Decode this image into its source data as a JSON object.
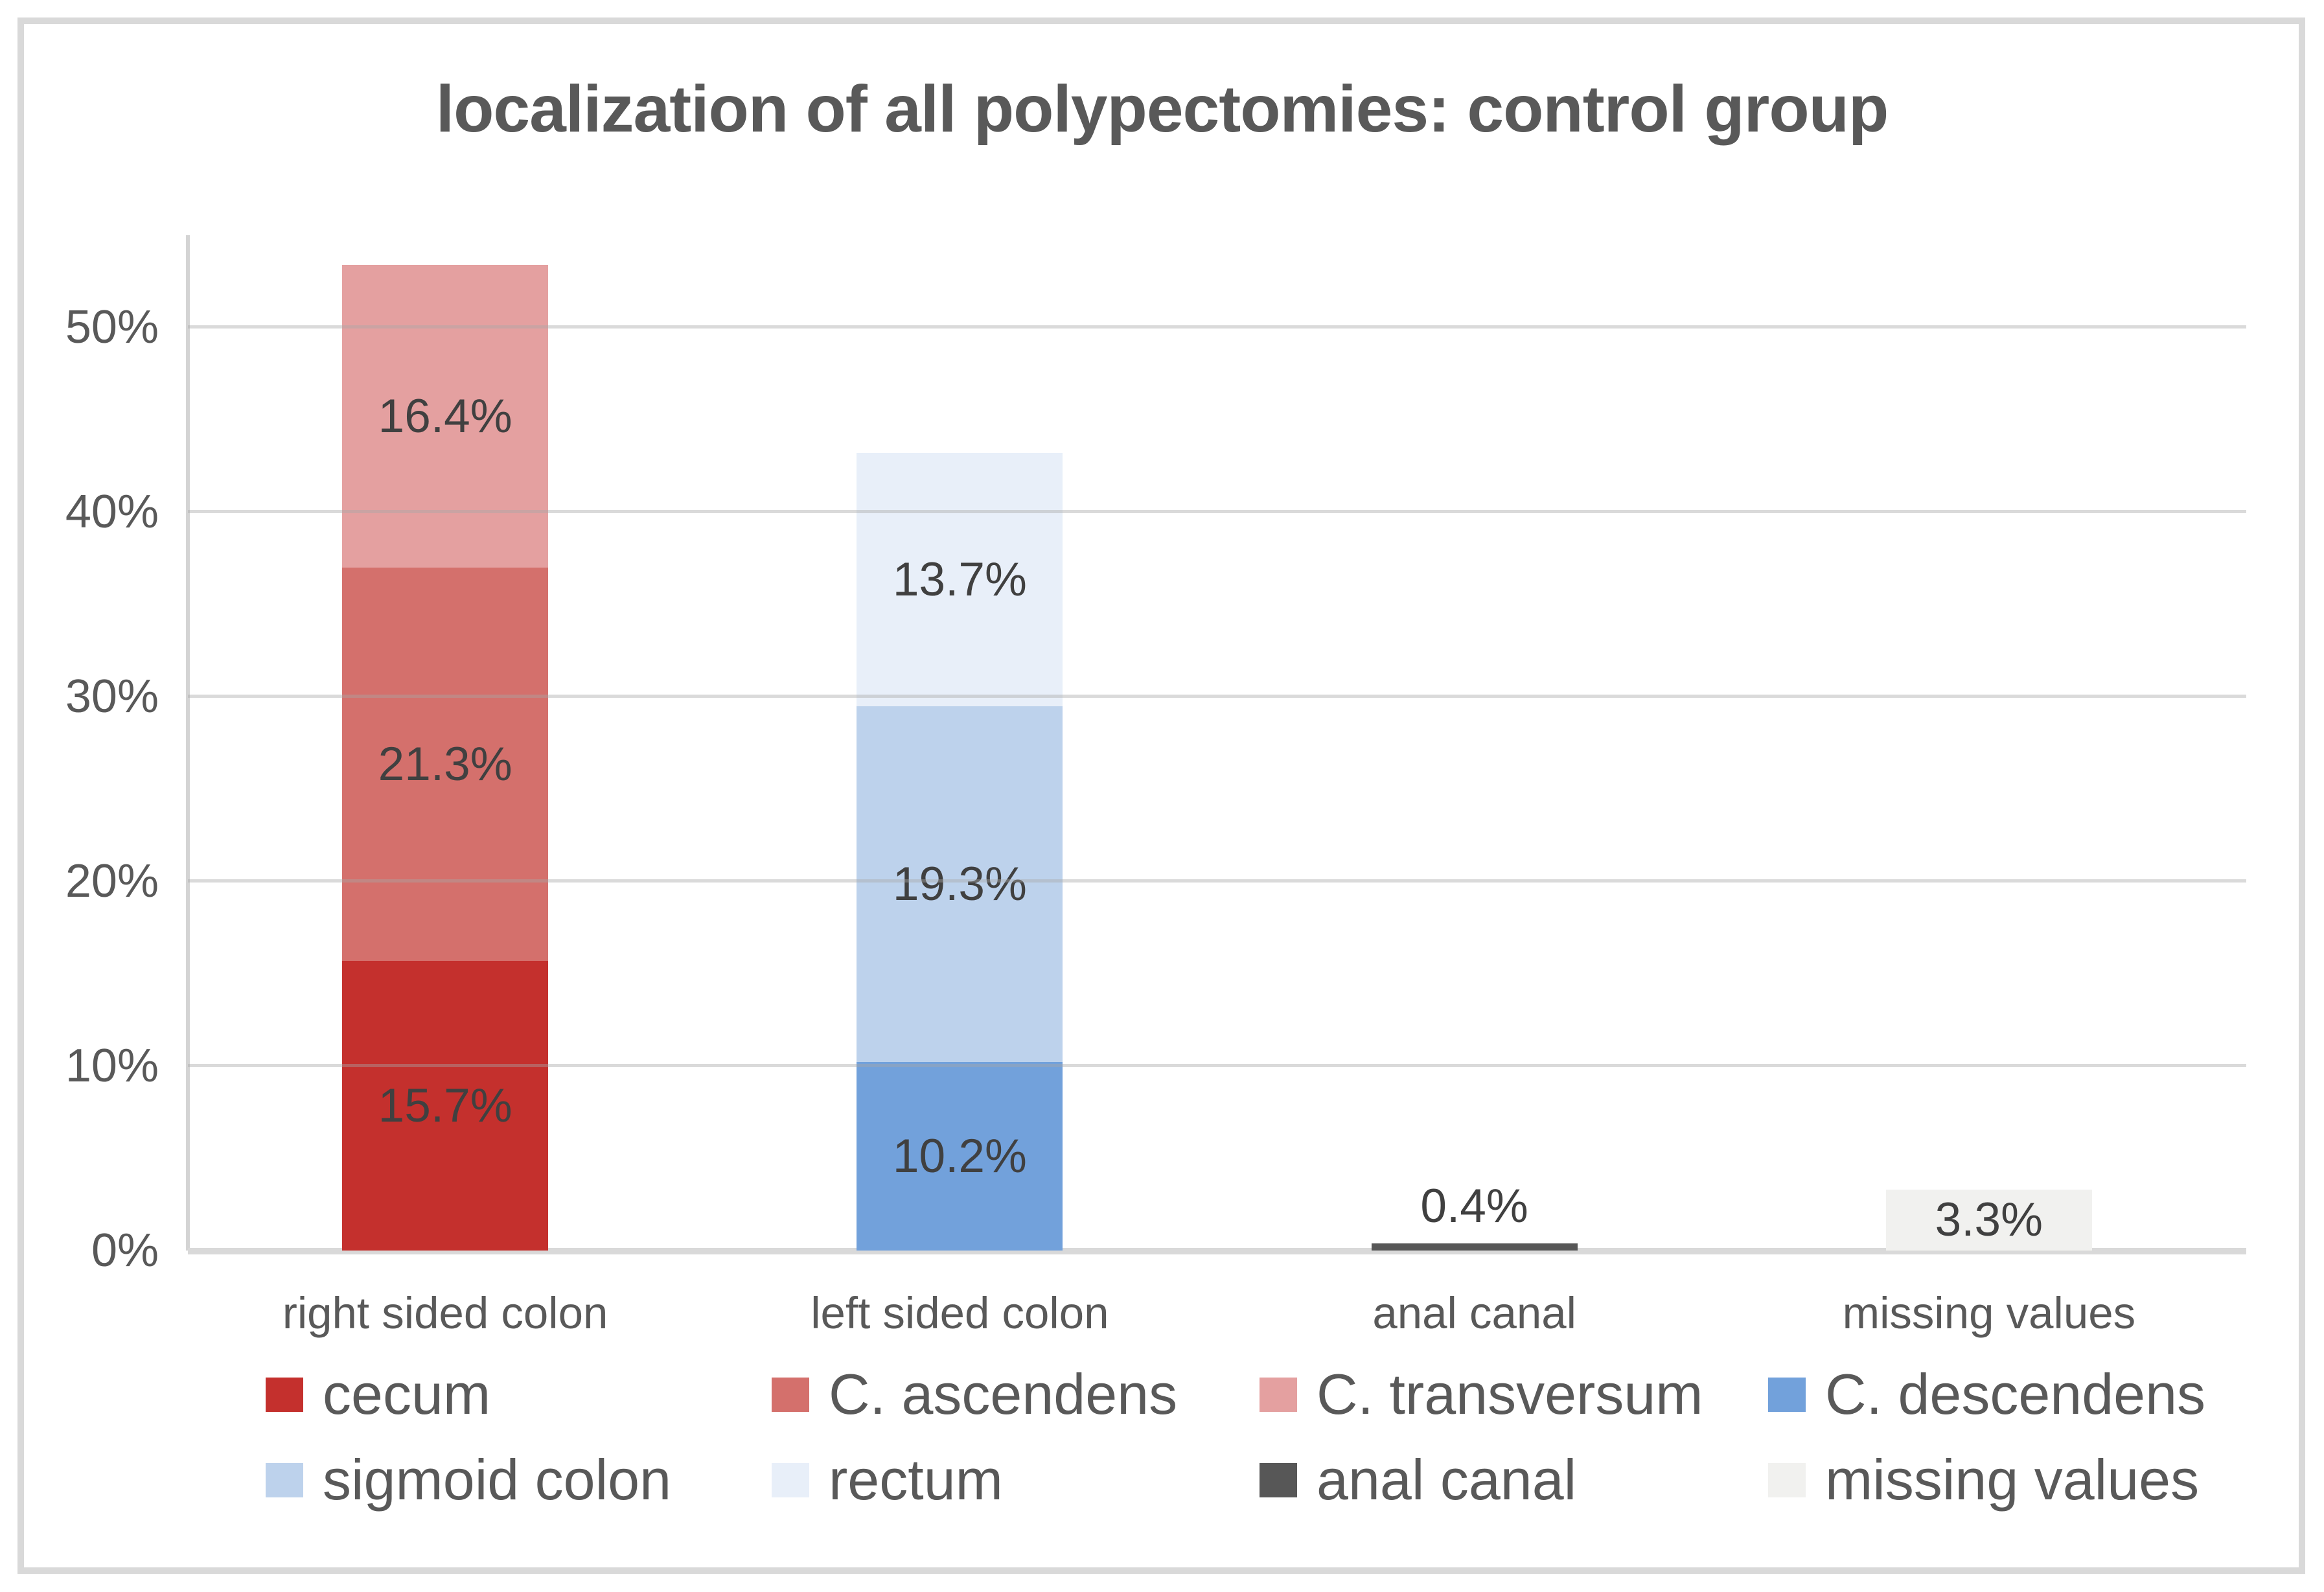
{
  "chart_data": {
    "type": "bar",
    "stacked": true,
    "title": "localization of all polypectomies: control group",
    "categories": [
      "right sided colon",
      "left sided colon",
      "anal canal",
      "missing values"
    ],
    "series": [
      {
        "name": "cecum",
        "color": "#C4302D",
        "values": [
          15.7,
          0,
          0,
          0
        ],
        "labels": [
          "15.7%",
          "",
          "",
          ""
        ]
      },
      {
        "name": "C. ascendens",
        "color": "#D4706C",
        "values": [
          21.3,
          0,
          0,
          0
        ],
        "labels": [
          "21.3%",
          "",
          "",
          ""
        ]
      },
      {
        "name": "C. transversum",
        "color": "#E4A0A0",
        "values": [
          16.4,
          0,
          0,
          0
        ],
        "labels": [
          "16.4%",
          "",
          "",
          ""
        ]
      },
      {
        "name": "C. descendens",
        "color": "#72A1DB",
        "values": [
          0,
          10.2,
          0,
          0
        ],
        "labels": [
          "",
          "10.2%",
          "",
          ""
        ]
      },
      {
        "name": "sigmoid colon",
        "color": "#BDD2EC",
        "values": [
          0,
          19.3,
          0,
          0
        ],
        "labels": [
          "",
          "19.3%",
          "",
          ""
        ]
      },
      {
        "name": "rectum",
        "color": "#E8EFF9",
        "values": [
          0,
          13.7,
          0,
          0
        ],
        "labels": [
          "",
          "13.7%",
          "",
          ""
        ]
      },
      {
        "name": "anal canal",
        "color": "#575757",
        "values": [
          0,
          0,
          0.4,
          0
        ],
        "labels": [
          "",
          "",
          "0.4%",
          ""
        ],
        "label_outside": true
      },
      {
        "name": "missing values",
        "color": "#F1F1EF",
        "values": [
          0,
          0,
          0,
          3.3
        ],
        "labels": [
          "",
          "",
          "",
          "3.3%"
        ]
      }
    ],
    "y_axis": {
      "min": 0,
      "max": 55,
      "tick_step": 10,
      "tick_labels": [
        "0%",
        "10%",
        "20%",
        "30%",
        "40%",
        "50%"
      ]
    },
    "totals": {
      "right sided colon": 53.4,
      "left sided colon": 43.2,
      "anal canal": 0.4,
      "missing values": 3.3
    },
    "grid": true,
    "legend": {
      "position": "bottom",
      "rows": 2,
      "columns": 4
    }
  },
  "styles": {
    "title_color": "#595959",
    "axis_text_color": "#595959",
    "data_label_color": "#404040",
    "gridline_color": "#D9D9D9",
    "axis_line_color": "#D4D4D4",
    "frame_border_color": "#D9D9D9",
    "background": "#FFFFFF"
  }
}
